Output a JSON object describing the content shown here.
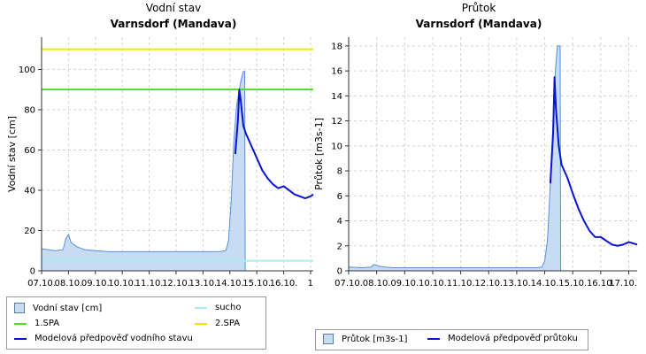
{
  "colors": {
    "area_fill": "#c5dcf2",
    "area_edge": "#5b8fd6",
    "forecast": "#0a14d2",
    "spa1": "#55dd22",
    "spa2": "#f2e600",
    "sucho": "#a8eef0",
    "grid": "#d4d4d4"
  },
  "chart_data": [
    {
      "type": "area",
      "title": "Vodní stav",
      "subtitle": "Varnsdorf (Mandava)",
      "ylabel": "Vodní stav [cm]",
      "xlabel": "",
      "x_tick_labels": [
        "07.10.",
        "08.10.",
        "09.10.",
        "10.10.",
        "11.10.",
        "12.10.",
        "13.10.",
        "14.10.",
        "15.10.",
        "16.10.",
        "1"
      ],
      "x_range_days": [
        7.0,
        17.1
      ],
      "yticks": [
        0,
        20,
        40,
        60,
        80,
        100
      ],
      "ylim": [
        0,
        116
      ],
      "grid": true,
      "thresholds": [
        {
          "name": "1.SPA",
          "value": 90,
          "color": "#55dd22"
        },
        {
          "name": "2.SPA",
          "value": 110,
          "color": "#f2e600"
        },
        {
          "name": "sucho",
          "value": 5,
          "color": "#a8eef0"
        }
      ],
      "series": [
        {
          "name": "Vodní stav [cm]",
          "kind": "area",
          "x": [
            7.0,
            7.5,
            7.8,
            7.9,
            8.0,
            8.1,
            8.3,
            8.6,
            9.0,
            9.5,
            10.0,
            11.0,
            12.0,
            13.0,
            13.6,
            13.85,
            13.95,
            14.05,
            14.15,
            14.25,
            14.35,
            14.42,
            14.5,
            14.55,
            14.57
          ],
          "y": [
            11,
            10,
            10.5,
            16,
            18,
            14,
            12,
            10.5,
            10,
            9.5,
            9.5,
            9.5,
            9.5,
            9.5,
            9.5,
            10,
            15,
            35,
            65,
            82,
            90,
            95,
            99,
            99,
            0
          ]
        },
        {
          "name": "Modelová předpověď vodního stavu",
          "kind": "line",
          "x": [
            14.2,
            14.3,
            14.35,
            14.4,
            14.5,
            14.6,
            14.8,
            15.0,
            15.2,
            15.4,
            15.6,
            15.8,
            16.0,
            16.2,
            16.4,
            16.6,
            16.8,
            17.0,
            17.1
          ],
          "y": [
            58,
            75,
            90,
            85,
            72,
            68,
            62,
            56,
            50,
            46,
            43,
            41,
            42,
            40,
            38,
            37,
            36,
            37,
            38
          ]
        }
      ],
      "legend": {
        "placement": "below",
        "items": [
          {
            "label": "Vodní stav [cm]",
            "swatch": "box"
          },
          {
            "label": "sucho",
            "swatch": "line",
            "color": "#a8eef0"
          },
          {
            "label": "1.SPA",
            "swatch": "line",
            "color": "#55dd22"
          },
          {
            "label": "2.SPA",
            "swatch": "line",
            "color": "#f2e600"
          },
          {
            "label": "Modelová předpověď vodního stavu",
            "swatch": "line",
            "color": "#0a14d2"
          }
        ]
      }
    },
    {
      "type": "area",
      "title": "Průtok",
      "subtitle": "Varnsdorf (Mandava)",
      "ylabel": "Průtok [m3s-1]",
      "xlabel": "",
      "x_tick_labels": [
        "07.10.",
        "08.10.",
        "09.10.",
        "10.10.",
        "11.10.",
        "12.10.",
        "13.10.",
        "14.10.",
        "15.10.",
        "16.10.",
        "17.10."
      ],
      "x_range_days": [
        7.0,
        17.3
      ],
      "yticks": [
        0,
        2,
        4,
        6,
        8,
        10,
        12,
        14,
        16,
        18
      ],
      "ylim": [
        0,
        18.7
      ],
      "grid": true,
      "series": [
        {
          "name": "Průtok  [m3s-1]",
          "kind": "area",
          "x": [
            7.0,
            7.5,
            7.8,
            7.9,
            8.0,
            8.1,
            8.3,
            8.6,
            9.0,
            10.0,
            11.0,
            12.0,
            13.0,
            13.7,
            13.9,
            14.0,
            14.1,
            14.2,
            14.3,
            14.38,
            14.45,
            14.5,
            14.55,
            14.57
          ],
          "y": [
            0.3,
            0.25,
            0.3,
            0.5,
            0.45,
            0.35,
            0.3,
            0.25,
            0.25,
            0.25,
            0.25,
            0.25,
            0.25,
            0.25,
            0.3,
            0.8,
            2.5,
            7,
            12,
            16,
            18,
            18,
            18,
            0
          ]
        },
        {
          "name": "Modelová předpověď průtoku",
          "kind": "line",
          "x": [
            14.2,
            14.3,
            14.35,
            14.4,
            14.5,
            14.6,
            14.8,
            15.0,
            15.2,
            15.4,
            15.6,
            15.8,
            16.0,
            16.2,
            16.4,
            16.6,
            16.8,
            17.0,
            17.3
          ],
          "y": [
            7,
            11,
            15.5,
            13,
            10,
            8.5,
            7.5,
            6.2,
            5.0,
            4.0,
            3.2,
            2.7,
            2.7,
            2.4,
            2.1,
            2.0,
            2.1,
            2.3,
            2.1
          ]
        }
      ],
      "legend": {
        "placement": "below",
        "items": [
          {
            "label": "Průtok  [m3s-1]",
            "swatch": "box"
          },
          {
            "label": "Modelová předpověď průtoku",
            "swatch": "line",
            "color": "#0a14d2"
          }
        ]
      }
    }
  ]
}
